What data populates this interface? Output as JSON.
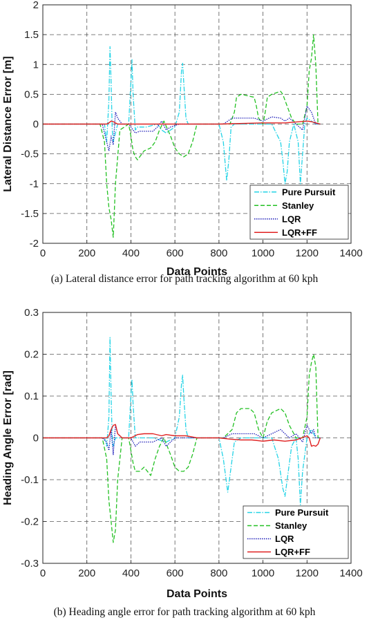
{
  "chart_data": [
    {
      "type": "line",
      "caption": "(a) Lateral distance error for path tracking algorithm at 60 kph",
      "xlabel": "Data Points",
      "ylabel": "Lateral Distance Error [m]",
      "xlim": [
        0,
        1400
      ],
      "ylim": [
        -2,
        2
      ],
      "xticks": [
        "0",
        "200",
        "400",
        "600",
        "800",
        "1000",
        "1200",
        "1400"
      ],
      "yticks": [
        "-2",
        "-1.5",
        "-1",
        "-0.5",
        "0",
        "0.5",
        "1",
        "1.5",
        "2"
      ],
      "grid": true,
      "legend_position": "bottom-right",
      "series": [
        {
          "name": "Pure Pursuit",
          "color": "#22d3e6",
          "dash": "dashdot",
          "x": [
            0,
            280,
            290,
            300,
            305,
            310,
            315,
            320,
            330,
            340,
            390,
            400,
            405,
            410,
            420,
            430,
            470,
            520,
            540,
            560,
            580,
            600,
            620,
            630,
            635,
            640,
            650,
            660,
            680,
            800,
            820,
            835,
            845,
            855,
            870,
            900,
            960,
            1000,
            1040,
            1080,
            1090,
            1100,
            1110,
            1120,
            1140,
            1160,
            1170,
            1180,
            1190,
            1200,
            1220,
            1240,
            1260
          ],
          "y": [
            0,
            0,
            -0.3,
            0.4,
            1.3,
            0.7,
            -0.1,
            -0.3,
            -0.15,
            0,
            0,
            0.7,
            1.08,
            0.5,
            -0.1,
            -0.05,
            -0.05,
            0,
            -0.1,
            -0.15,
            -0.1,
            -0.05,
            0.2,
            0.9,
            1.02,
            0.7,
            0.1,
            0,
            0,
            0,
            -0.3,
            -0.95,
            -0.6,
            -0.05,
            0,
            0,
            0,
            0,
            0,
            -0.3,
            -0.6,
            -1.0,
            -0.8,
            -0.3,
            0,
            -0.3,
            -1.0,
            -0.5,
            0,
            0.1,
            0.05,
            0,
            0
          ]
        },
        {
          "name": "Stanley",
          "color": "#22c022",
          "dash": "dashed",
          "x": [
            0,
            260,
            280,
            290,
            300,
            310,
            320,
            330,
            350,
            390,
            400,
            410,
            420,
            430,
            440,
            460,
            490,
            510,
            530,
            550,
            580,
            600,
            620,
            640,
            660,
            680,
            700,
            800,
            850,
            870,
            880,
            900,
            960,
            970,
            980,
            1000,
            1010,
            1020,
            1040,
            1080,
            1090,
            1110,
            1130,
            1150,
            1180,
            1200,
            1210,
            1220,
            1230,
            1240,
            1250,
            1260
          ],
          "y": [
            0,
            0,
            -0.3,
            -1.0,
            -1.4,
            -1.6,
            -1.9,
            -1.0,
            -0.1,
            0,
            -0.2,
            -0.45,
            -0.55,
            -0.6,
            -0.55,
            -0.45,
            -0.4,
            -0.3,
            -0.1,
            0.05,
            -0.2,
            -0.4,
            -0.5,
            -0.55,
            -0.5,
            -0.3,
            0,
            0,
            0,
            0.2,
            0.45,
            0.5,
            0.45,
            0.3,
            0.1,
            0,
            0.2,
            0.45,
            0.5,
            0.55,
            0.5,
            0.3,
            0.1,
            0,
            0,
            0.3,
            0.9,
            1.1,
            1.5,
            1.0,
            0,
            0
          ]
        },
        {
          "name": "LQR",
          "color": "#1a1ab8",
          "dash": "dotted",
          "x": [
            0,
            270,
            290,
            300,
            310,
            320,
            330,
            340,
            360,
            390,
            410,
            420,
            440,
            500,
            520,
            540,
            560,
            580,
            620,
            650,
            700,
            820,
            860,
            900,
            960,
            1000,
            1040,
            1080,
            1100,
            1120,
            1150,
            1180,
            1200,
            1210,
            1220,
            1230,
            1240,
            1260
          ],
          "y": [
            0,
            0,
            -0.3,
            -0.45,
            -0.2,
            -0.35,
            0.2,
            0.1,
            0,
            0,
            -0.1,
            -0.15,
            -0.12,
            -0.12,
            -0.05,
            0.05,
            -0.1,
            -0.05,
            0,
            0,
            0,
            0,
            0.1,
            0.1,
            0.1,
            0.05,
            0.12,
            0.1,
            0.05,
            0.1,
            0,
            -0.1,
            0.3,
            0.25,
            0.2,
            0.1,
            0,
            0
          ]
        },
        {
          "name": "LQR+FF",
          "color": "#e02020",
          "dash": "solid",
          "x": [
            0,
            290,
            300,
            310,
            320,
            330,
            340,
            400,
            800,
            1000,
            1100,
            1200,
            1220,
            1240,
            1260
          ],
          "y": [
            0,
            0,
            0.02,
            0.05,
            0.04,
            0.02,
            0,
            0,
            0,
            0.02,
            0.02,
            0.05,
            0.04,
            0.02,
            0
          ]
        }
      ]
    },
    {
      "type": "line",
      "caption": "(b) Heading angle error for path tracking algorithm at 60 kph",
      "xlabel": "Data Points",
      "ylabel": "Heading Angle Error [rad]",
      "xlim": [
        0,
        1400
      ],
      "ylim": [
        -0.3,
        0.3
      ],
      "xticks": [
        "0",
        "200",
        "400",
        "600",
        "800",
        "1000",
        "1200",
        "1400"
      ],
      "yticks": [
        "-0.3",
        "-0.2",
        "-0.1",
        "0",
        "0.1",
        "0.2",
        "0.3"
      ],
      "grid": true,
      "legend_position": "bottom-right",
      "series": [
        {
          "name": "Pure Pursuit",
          "color": "#22d3e6",
          "dash": "dashdot",
          "x": [
            0,
            280,
            290,
            300,
            305,
            310,
            315,
            320,
            330,
            390,
            400,
            405,
            410,
            420,
            430,
            500,
            560,
            600,
            620,
            630,
            635,
            640,
            650,
            660,
            680,
            800,
            820,
            840,
            850,
            870,
            900,
            1040,
            1070,
            1090,
            1100,
            1110,
            1130,
            1150,
            1160,
            1170,
            1180,
            1200,
            1220,
            1240,
            1260
          ],
          "y": [
            0,
            0,
            -0.02,
            0.05,
            0.24,
            0.1,
            0,
            -0.02,
            0,
            0,
            0.1,
            0.14,
            0.08,
            0,
            0,
            0,
            -0.01,
            0,
            0.05,
            0.13,
            0.15,
            0.1,
            0.02,
            0,
            0,
            0,
            -0.05,
            -0.13,
            -0.09,
            -0.01,
            0,
            0,
            -0.05,
            -0.12,
            -0.14,
            -0.1,
            -0.02,
            0,
            -0.05,
            -0.16,
            -0.08,
            0,
            0.02,
            0,
            0
          ]
        },
        {
          "name": "Stanley",
          "color": "#22c022",
          "dash": "dashed",
          "x": [
            0,
            270,
            290,
            300,
            310,
            320,
            330,
            340,
            360,
            390,
            400,
            410,
            420,
            440,
            460,
            490,
            510,
            530,
            550,
            580,
            600,
            620,
            640,
            660,
            680,
            700,
            820,
            860,
            880,
            900,
            940,
            960,
            980,
            1000,
            1020,
            1040,
            1080,
            1100,
            1120,
            1150,
            1180,
            1200,
            1210,
            1220,
            1230,
            1240,
            1250,
            1260
          ],
          "y": [
            0,
            0,
            -0.05,
            -0.15,
            -0.2,
            -0.25,
            -0.22,
            -0.1,
            0,
            0,
            -0.03,
            -0.06,
            -0.08,
            -0.08,
            -0.07,
            -0.09,
            -0.05,
            -0.02,
            0,
            -0.04,
            -0.07,
            -0.08,
            -0.08,
            -0.07,
            -0.04,
            0,
            0,
            0.02,
            0.06,
            0.07,
            0.07,
            0.06,
            0.02,
            0,
            0.04,
            0.06,
            0.07,
            0.06,
            0.03,
            0,
            0,
            0.05,
            0.15,
            0.18,
            0.2,
            0.17,
            0,
            0
          ]
        },
        {
          "name": "LQR",
          "color": "#1a1ab8",
          "dash": "dotted",
          "x": [
            0,
            270,
            290,
            300,
            310,
            320,
            330,
            340,
            360,
            400,
            420,
            440,
            500,
            540,
            560,
            600,
            650,
            700,
            820,
            860,
            900,
            960,
            1000,
            1040,
            1080,
            1100,
            1120,
            1150,
            1180,
            1200,
            1210,
            1220,
            1230,
            1240,
            1260
          ],
          "y": [
            0,
            0,
            -0.01,
            -0.03,
            0.02,
            -0.04,
            0.03,
            0.01,
            0,
            0,
            -0.02,
            -0.01,
            -0.01,
            0,
            -0.02,
            0,
            0,
            0,
            0,
            0.01,
            0.01,
            0.01,
            0,
            0.01,
            0.02,
            0.01,
            0,
            0.01,
            -0.01,
            0.03,
            0.02,
            0.01,
            0.02,
            0,
            0
          ]
        },
        {
          "name": "LQR+FF",
          "color": "#e02020",
          "dash": "solid",
          "x": [
            0,
            290,
            300,
            310,
            320,
            330,
            340,
            360,
            400,
            430,
            460,
            500,
            540,
            560,
            600,
            650,
            700,
            800,
            850,
            900,
            950,
            1000,
            1050,
            1100,
            1150,
            1200,
            1210,
            1220,
            1230,
            1240,
            1250,
            1260
          ],
          "y": [
            0,
            0,
            0.005,
            0.02,
            0.03,
            0.032,
            0.01,
            0,
            0,
            0.008,
            0.01,
            0.01,
            0.005,
            0.008,
            0.005,
            0.005,
            0,
            0,
            -0.003,
            -0.005,
            -0.005,
            -0.008,
            -0.005,
            -0.008,
            -0.005,
            0.005,
            0.0,
            -0.02,
            -0.018,
            -0.02,
            -0.015,
            0
          ]
        }
      ]
    }
  ]
}
